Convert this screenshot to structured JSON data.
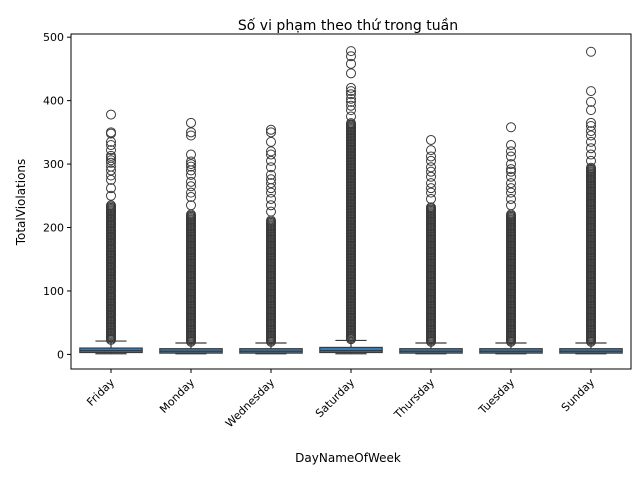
{
  "chart_data": {
    "type": "box",
    "title": "Số vi phạm theo thứ trong tuần",
    "xlabel": "DayNameOfWeek",
    "ylabel": "TotalViolations",
    "ylim": [
      -23,
      505
    ],
    "yticks": [
      0,
      100,
      200,
      300,
      400,
      500
    ],
    "grid": false,
    "colors": {
      "box_fill": "#3d7bb0",
      "line": "#3a3a3a"
    },
    "categories": [
      "Friday",
      "Monday",
      "Wednesday",
      "Saturday",
      "Thursday",
      "Tuesday",
      "Sunday"
    ],
    "boxes": [
      {
        "name": "Friday",
        "whisker_low": 1,
        "q1": 3,
        "median": 6,
        "q3": 10,
        "whisker_high": 21,
        "outlier_max": 378,
        "dense_outliers_to": 235,
        "outliers": [
          250,
          262,
          275,
          282,
          290,
          296,
          302,
          306,
          310,
          313,
          322,
          330,
          335,
          348,
          350,
          378
        ]
      },
      {
        "name": "Monday",
        "whisker_low": 1,
        "q1": 2,
        "median": 5,
        "q3": 9,
        "whisker_high": 18,
        "outlier_max": 365,
        "dense_outliers_to": 222,
        "outliers": [
          235,
          248,
          255,
          265,
          272,
          283,
          290,
          296,
          300,
          304,
          315,
          345,
          350,
          365
        ]
      },
      {
        "name": "Wednesday",
        "whisker_low": 1,
        "q1": 2,
        "median": 5,
        "q3": 9,
        "whisker_high": 18,
        "outlier_max": 354,
        "dense_outliers_to": 212,
        "outliers": [
          225,
          235,
          245,
          255,
          262,
          270,
          276,
          283,
          295,
          305,
          315,
          320,
          335,
          350,
          354
        ]
      },
      {
        "name": "Saturday",
        "whisker_low": 1,
        "q1": 3,
        "median": 6,
        "q3": 11,
        "whisker_high": 22,
        "outlier_max": 478,
        "dense_outliers_to": 365,
        "outliers": [
          375,
          385,
          392,
          398,
          403,
          410,
          415,
          420,
          443,
          458,
          470,
          478
        ]
      },
      {
        "name": "Thursday",
        "whisker_low": 1,
        "q1": 2,
        "median": 5,
        "q3": 9,
        "whisker_high": 18,
        "outlier_max": 338,
        "dense_outliers_to": 232,
        "outliers": [
          245,
          255,
          262,
          270,
          280,
          288,
          295,
          305,
          312,
          322,
          338
        ]
      },
      {
        "name": "Tuesday",
        "whisker_low": 1,
        "q1": 2,
        "median": 5,
        "q3": 9,
        "whisker_high": 18,
        "outlier_max": 358,
        "dense_outliers_to": 222,
        "outliers": [
          235,
          245,
          255,
          262,
          270,
          280,
          288,
          292,
          300,
          312,
          320,
          330,
          358
        ]
      },
      {
        "name": "Sunday",
        "whisker_low": 1,
        "q1": 2,
        "median": 5,
        "q3": 9,
        "whisker_high": 18,
        "outlier_max": 477,
        "dense_outliers_to": 295,
        "outliers": [
          305,
          315,
          325,
          335,
          345,
          352,
          360,
          365,
          385,
          398,
          415,
          477
        ]
      }
    ]
  }
}
